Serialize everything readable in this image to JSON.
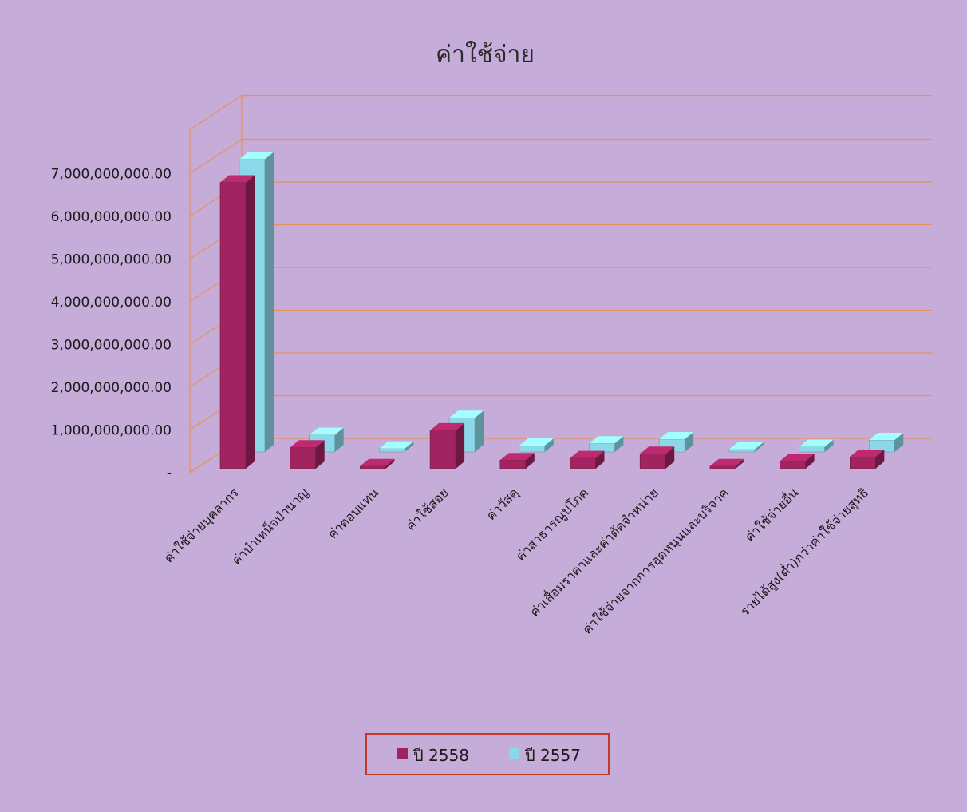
{
  "chart_data": {
    "type": "bar",
    "title": "ค่าใช้จ่าย",
    "categories": [
      "ค่าใช้จ่ายบุคลากร",
      "ค่าบำเหน็จบำนาญ",
      "ค่าตอบแทน",
      "ค่าใช้สอย",
      "ค่าวัสดุ",
      "ค่าสาธารณูปโภค",
      "ค่าเสื่อมราคาและค่าตัดจำหน่าย",
      "ค่าใช้จ่ายจากการอุดหนุนและบริจาค",
      "ค่าใช้จ่ายอื่น",
      "รายได้สูง(ต่ำ)กว่าค่าใช้จ่ายสุทธิ"
    ],
    "series": [
      {
        "name": "ปี 2558",
        "color": "#a0245f",
        "values": [
          6700000000,
          500000000,
          60000000,
          900000000,
          200000000,
          250000000,
          350000000,
          60000000,
          180000000,
          280000000
        ]
      },
      {
        "name": "ปี 2557",
        "color": "#8ad8e8",
        "values": [
          6850000000,
          400000000,
          80000000,
          800000000,
          150000000,
          200000000,
          300000000,
          60000000,
          120000000,
          280000000
        ]
      }
    ],
    "yticks": [
      "-",
      "1,000,000,000.00",
      "2,000,000,000.00",
      "3,000,000,000.00",
      "4,000,000,000.00",
      "5,000,000,000.00",
      "6,000,000,000.00",
      "7,000,000,000.00"
    ],
    "ylim": [
      0,
      7000000000
    ],
    "grid": true,
    "legend_position": "bottom"
  }
}
